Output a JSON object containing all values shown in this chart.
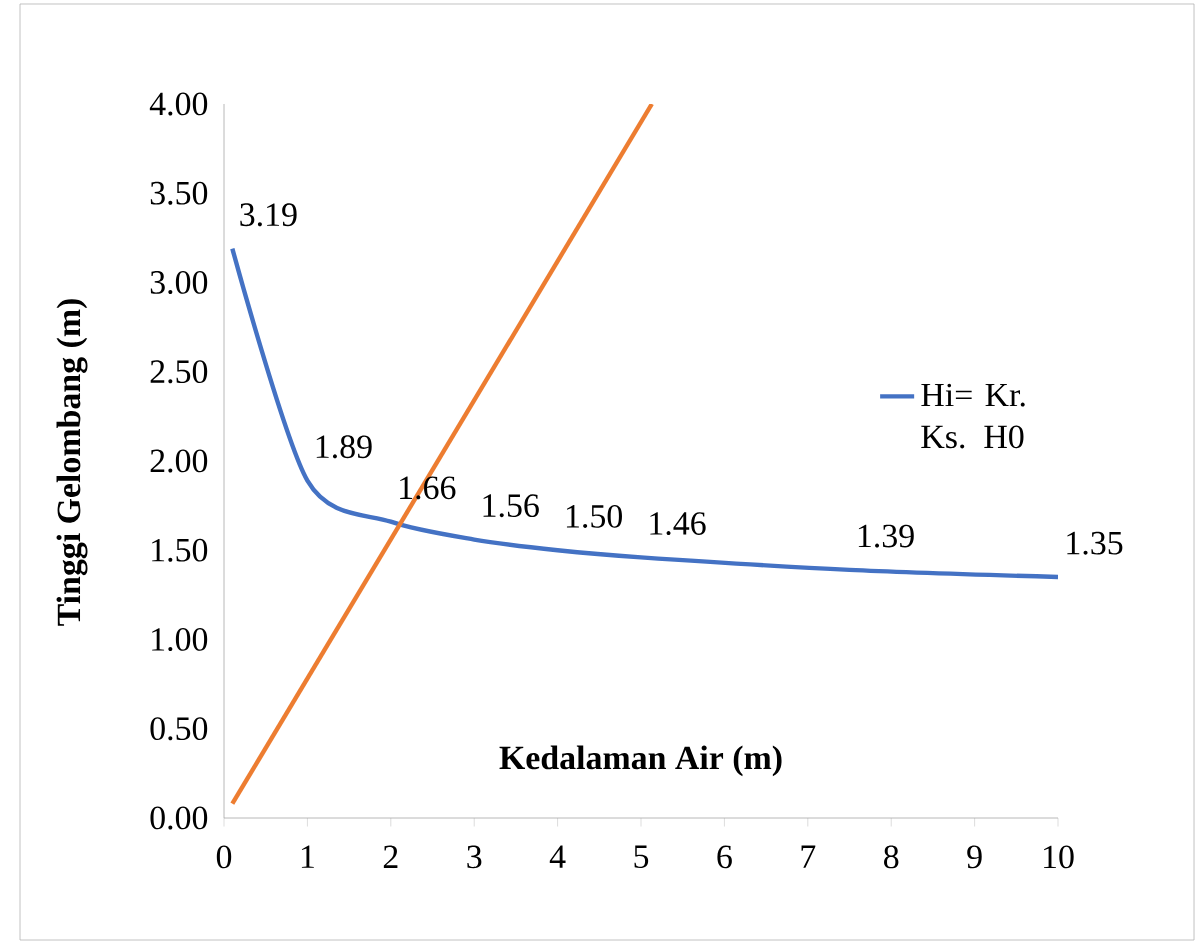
{
  "chart_data": {
    "type": "line",
    "xlabel": "Kedalaman Air (m)",
    "ylabel": "Tinggi Gelombang (m)",
    "xlim": [
      0,
      10
    ],
    "ylim": [
      0,
      4
    ],
    "xticks": [
      0,
      1,
      2,
      3,
      4,
      5,
      6,
      7,
      8,
      9,
      10
    ],
    "yticks": [
      {
        "value": 0,
        "label": "0.00"
      },
      {
        "value": 0.5,
        "label": "0.50"
      },
      {
        "value": 1,
        "label": "1.00"
      },
      {
        "value": 1.5,
        "label": "1.50"
      },
      {
        "value": 2,
        "label": "2.00"
      },
      {
        "value": 2.5,
        "label": "2.50"
      },
      {
        "value": 3,
        "label": "3.00"
      },
      {
        "value": 3.5,
        "label": "3.50"
      },
      {
        "value": 4,
        "label": "4.00"
      }
    ],
    "grid": false,
    "legend": "right",
    "marker": "none",
    "series": [
      {
        "name": "Hi= Kr. Ks. H0",
        "color": "#4472c4",
        "x": [
          0.1,
          1,
          2,
          3,
          4,
          5,
          7.5,
          10
        ],
        "values": [
          3.19,
          1.89,
          1.66,
          1.56,
          1.5,
          1.46,
          1.39,
          1.35
        ],
        "value_labels": [
          "3.19",
          "1.89",
          "1.66",
          "1.56",
          "1.50",
          "1.46",
          "1.39",
          "1.35"
        ]
      },
      {
        "color": "#ed7d31",
        "x": [
          0.1,
          5.13
        ],
        "values": [
          0.08,
          4.0
        ]
      }
    ]
  }
}
